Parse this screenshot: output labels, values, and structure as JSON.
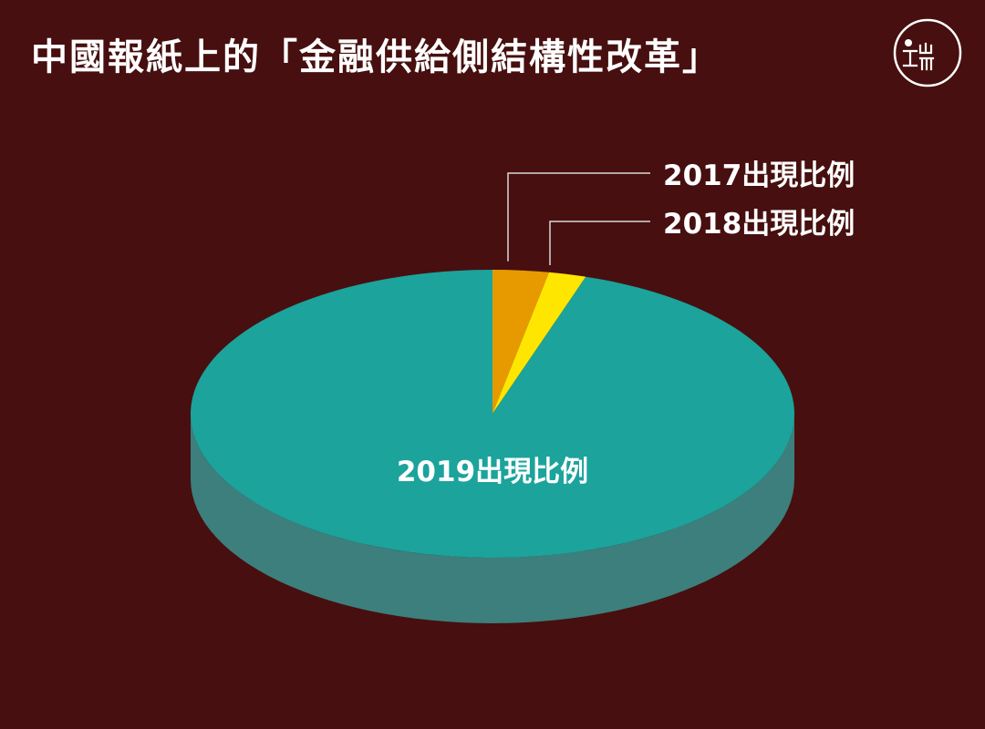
{
  "title": "中國報紙上的「金融供給側結構性改革」",
  "logo": {
    "icon": "initium-logo-icon"
  },
  "colors": {
    "background": "#470F0F",
    "text": "#FFFFFF",
    "leader_line": "#D8D8D8"
  },
  "chart_data": {
    "type": "pie",
    "style": "3d",
    "title": "中國報紙上的「金融供給側結構性改革」",
    "slices": [
      {
        "label": "2017出現比例",
        "value": 3,
        "color": "#E69A00",
        "side_color": "#B87A00"
      },
      {
        "label": "2018出現比例",
        "value": 2,
        "color": "#FFE600",
        "side_color": "#C8B400"
      },
      {
        "label": "2019出現比例",
        "value": 95,
        "color": "#1BA39C",
        "side_color": "#3C7F7C"
      }
    ],
    "start_angle": "12 o'clock, clockwise",
    "labels_outside": [
      "2017出現比例",
      "2018出現比例"
    ],
    "labels_inside": [
      "2019出現比例"
    ]
  }
}
